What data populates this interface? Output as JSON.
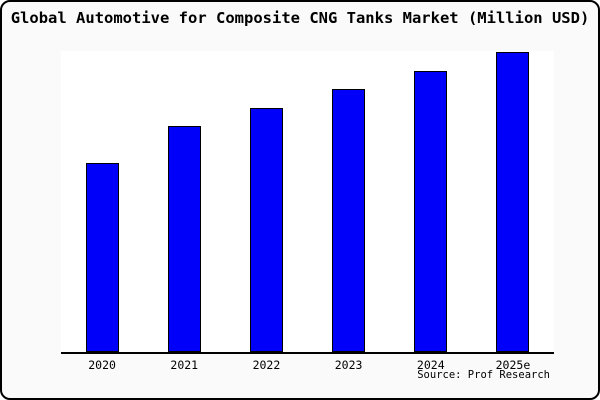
{
  "chart_data": {
    "type": "bar",
    "title": "Global Automotive for Composite CNG Tanks Market (Million USD)",
    "categories": [
      "2020",
      "2021",
      "2022",
      "2023",
      "2024",
      "2025e"
    ],
    "values": [
      62.9,
      75.2,
      81.5,
      87.7,
      93.7,
      100
    ],
    "values_note": "relative bar heights (tallest bar = 100); no numeric y-axis labels are shown in the chart",
    "ylim": [
      0,
      101
    ],
    "xlabel": "",
    "ylabel": "",
    "legend": "none",
    "grid": false,
    "y_axis_line": "none",
    "x_axis_line": "solid black",
    "bar_color": "#0000fa",
    "bar_border_color": "#000000",
    "source_label": "Source: Prof Research"
  },
  "colors": {
    "canvas_background": "#fafafa",
    "plot_background": "#ffffff",
    "frame_border": "#000000",
    "text": "#000000"
  }
}
